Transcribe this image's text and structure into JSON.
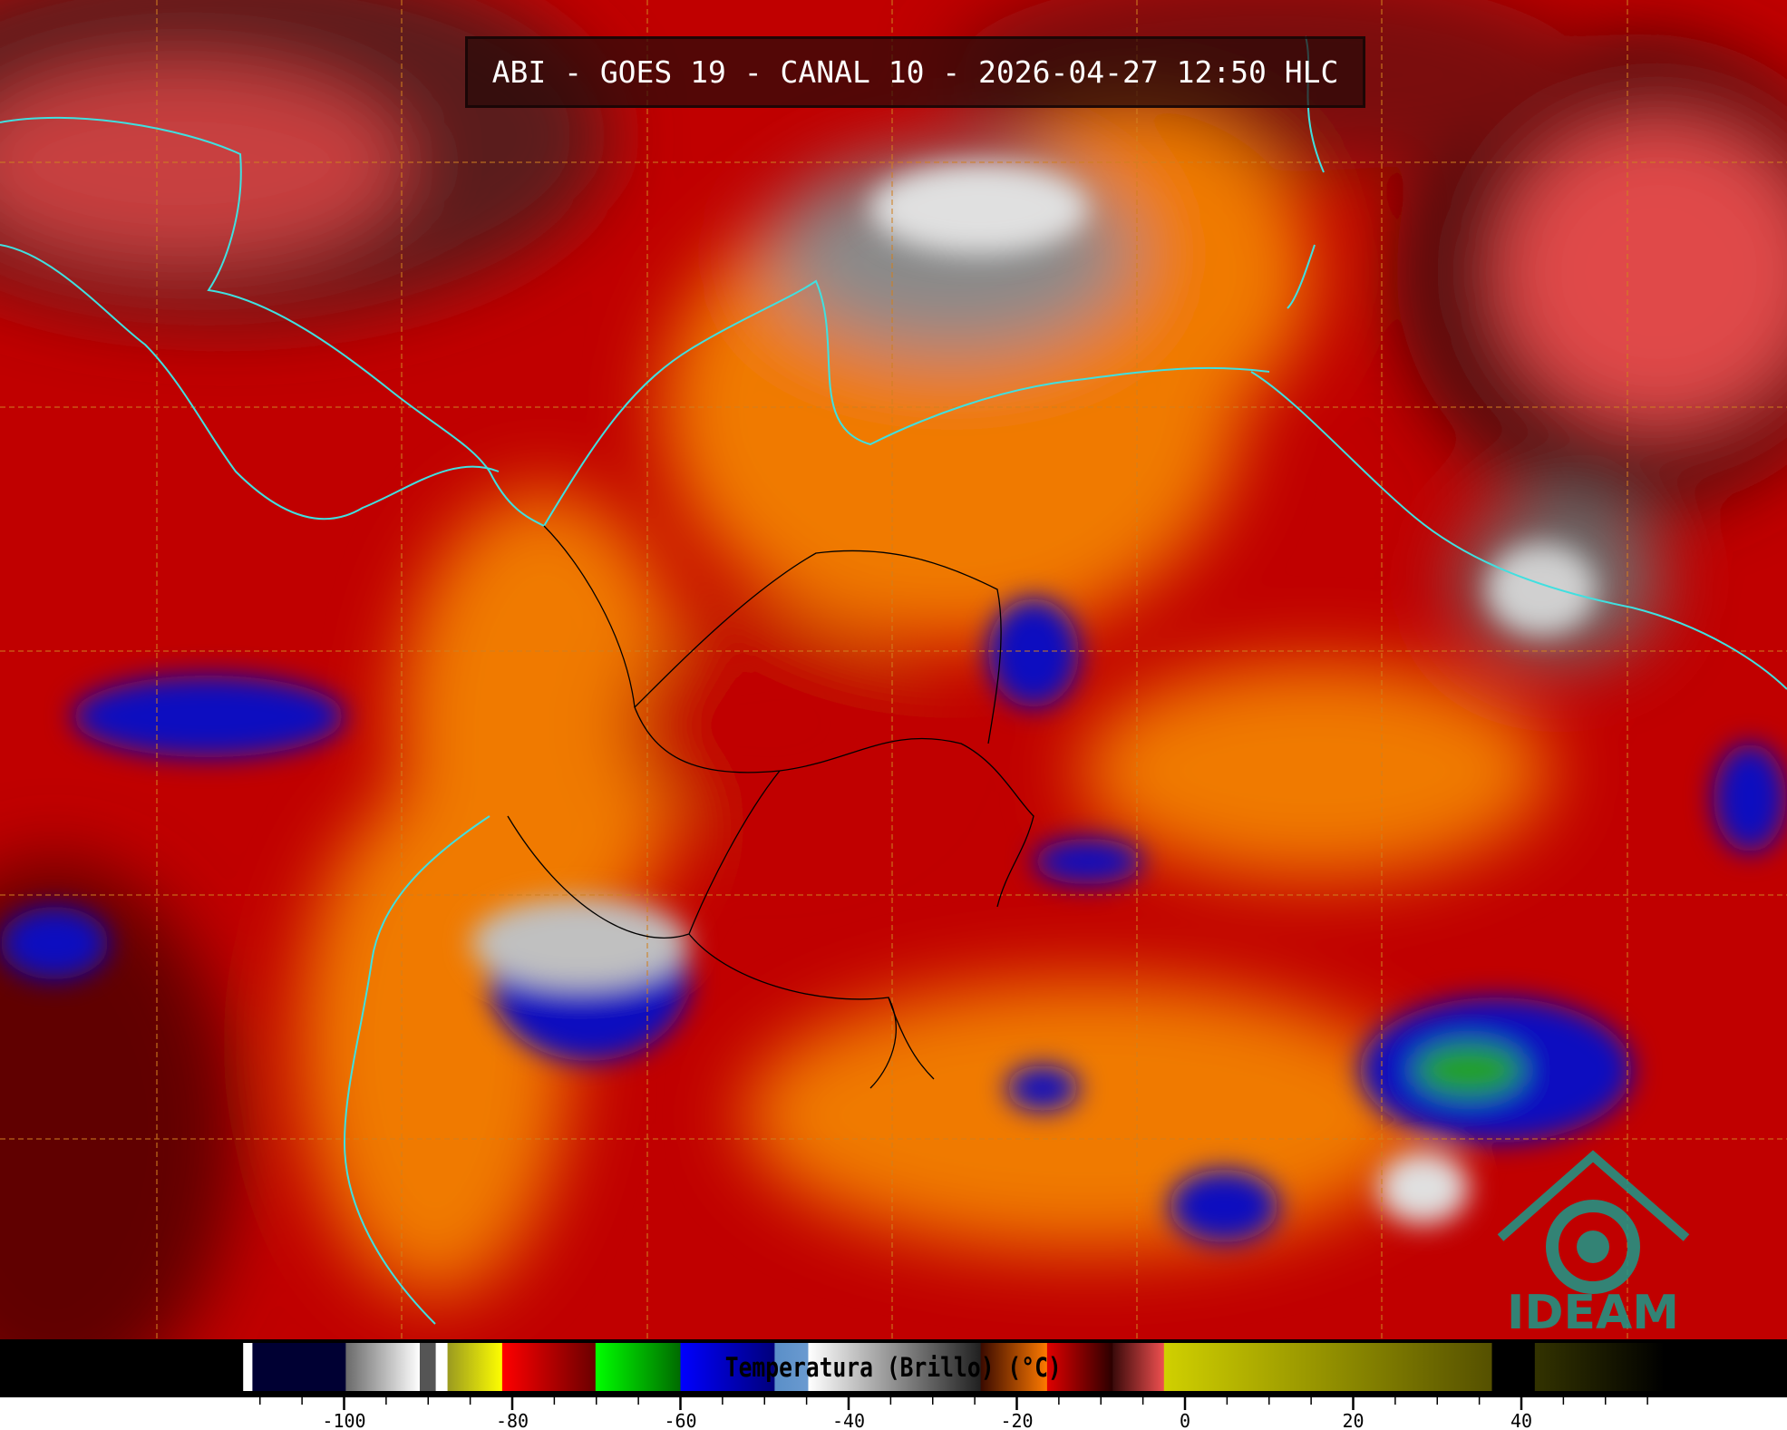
{
  "title": "ABI - GOES 19 - CANAL 10 - 2026-04-27 12:50 HLC",
  "colorbar": {
    "label": "Temperatura (Brillo) (°C)",
    "unit": "°C",
    "range": [
      -112,
      57
    ],
    "major_ticks": [
      -100,
      -80,
      -60,
      -40,
      -20,
      0,
      20,
      40
    ],
    "tick_labels": [
      "-100",
      "-80",
      "-60",
      "-40",
      "-20",
      "0",
      "20",
      "40"
    ],
    "minor_tick_step": 5,
    "segments": [
      {
        "from": -112,
        "to": -110.9,
        "colors": [
          "#ffffff",
          "#ffffff"
        ]
      },
      {
        "from": -110.9,
        "to": -99.8,
        "colors": [
          "#000033",
          "#000033"
        ]
      },
      {
        "from": -99.8,
        "to": -91,
        "colors": [
          "#6a6a6a",
          "#ffffff"
        ]
      },
      {
        "from": -91,
        "to": -89.1,
        "colors": [
          "#555555",
          "#555555"
        ]
      },
      {
        "from": -89.1,
        "to": -87.7,
        "colors": [
          "#ffffff",
          "#ffffff"
        ]
      },
      {
        "from": -87.7,
        "to": -81.2,
        "colors": [
          "#9a9a20",
          "#ffff00"
        ]
      },
      {
        "from": -81.2,
        "to": -70.1,
        "colors": [
          "#ff0000",
          "#6a0000"
        ]
      },
      {
        "from": -70.1,
        "to": -60,
        "colors": [
          "#00ff00",
          "#006a00"
        ]
      },
      {
        "from": -60,
        "to": -48.8,
        "colors": [
          "#0000ff",
          "#00007a"
        ]
      },
      {
        "from": -48.8,
        "to": -44.8,
        "colors": [
          "#5a8fc8",
          "#6a9ad0"
        ]
      },
      {
        "from": -44.8,
        "to": -24.3,
        "colors": [
          "#ffffff",
          "#202020"
        ]
      },
      {
        "from": -24.3,
        "to": -16.4,
        "colors": [
          "#3a0a00",
          "#ff7a00"
        ]
      },
      {
        "from": -16.4,
        "to": -8.6,
        "colors": [
          "#e00000",
          "#2a0000"
        ]
      },
      {
        "from": -8.6,
        "to": -2.5,
        "colors": [
          "#3a0a0a",
          "#f05050"
        ]
      },
      {
        "from": -2.5,
        "to": 36.5,
        "colors": [
          "#d0d000",
          "#555000"
        ]
      },
      {
        "from": 36.5,
        "to": 41.6,
        "colors": [
          "#000000",
          "#000000"
        ]
      },
      {
        "from": 41.6,
        "to": 57,
        "colors": [
          "#333300",
          "#000000"
        ]
      }
    ]
  },
  "map": {
    "coastline_color": "#40e0e0",
    "border_color": "#000000",
    "grid_color": "#d08020",
    "grid_style": "dashed"
  },
  "logo": {
    "text": "IDEAM",
    "color": "#1a9a8a"
  }
}
